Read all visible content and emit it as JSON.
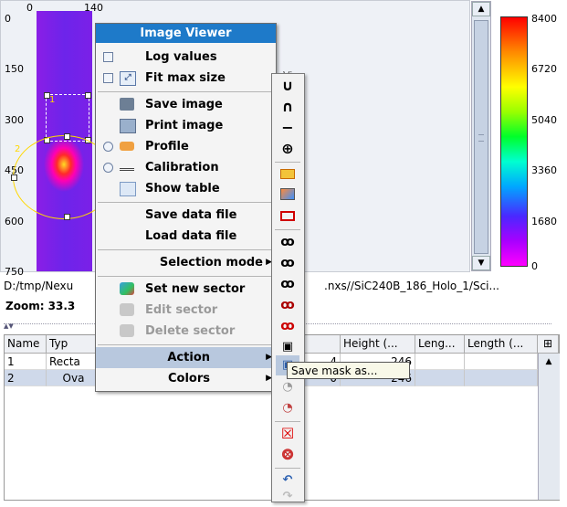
{
  "image": {
    "x_ticks": [
      "0",
      "140"
    ],
    "y_ticks": [
      "0",
      "150",
      "300",
      "450",
      "600",
      "750"
    ],
    "roi_labels": [
      "1",
      "2"
    ]
  },
  "colorbar": {
    "ticks": [
      "8400",
      "6720",
      "5040",
      "3360",
      "1680",
      "0"
    ],
    "colors": [
      "#ff0000",
      "#ffff00",
      "#00ff2a",
      "#00a8ff",
      "#a800ff",
      "#ff00ff"
    ]
  },
  "status": {
    "path": "D:/tmp/Nexu",
    "path_tail": ".nxs//SiC240B_186_Holo_1/Sci...",
    "zoom": "Zoom: 33.3",
    "partial_row_text": "Vi"
  },
  "menu": {
    "title": "Image Viewer",
    "items": {
      "log_values": "Log values",
      "fit_max_size": "Fit max size",
      "save_image": "Save image",
      "print_image": "Print image",
      "profile": "Profile",
      "calibration": "Calibration",
      "show_table": "Show table",
      "save_data_file": "Save data file",
      "load_data_file": "Load data file",
      "selection_mode": "Selection mode",
      "set_new_sector": "Set new sector",
      "edit_sector": "Edit sector",
      "delete_sector": "Delete sector",
      "action": "Action",
      "colors": "Colors"
    }
  },
  "submenu": {
    "glyphs": [
      "∪",
      "∩",
      "−",
      "⊕"
    ]
  },
  "tooltip": "Save mask as...",
  "table": {
    "headers": [
      "Name",
      "Typ",
      "Height (...",
      "Leng...",
      "Length (..."
    ],
    "rows": [
      {
        "name": "1",
        "type": "Recta",
        "height": "246",
        "partial": "4"
      },
      {
        "name": "2",
        "type": "Ova",
        "height": "246",
        "partial": "0"
      }
    ]
  }
}
